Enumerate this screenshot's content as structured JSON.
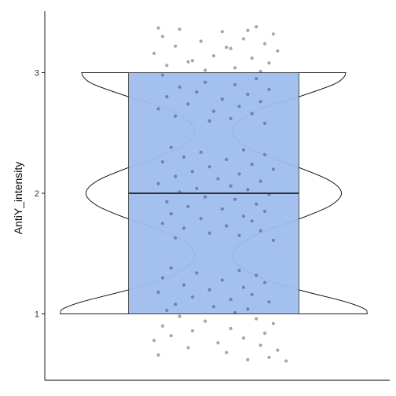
{
  "chart_data": {
    "type": "violin",
    "title": "",
    "xlabel": "",
    "ylabel": "AntiY_intensity",
    "ylim": [
      0.45,
      3.55
    ],
    "yticks": [
      1,
      2,
      3
    ],
    "ytick_labels": [
      "1",
      "2",
      "3"
    ],
    "grid": false,
    "legend": "none",
    "colors": {
      "box_fill": "#9fbdee",
      "box_stroke": "#2b2b2b",
      "violin_stroke": "#000000",
      "points": "#3a3a3a",
      "axis": "#000000"
    },
    "violin": {
      "y_range": [
        1,
        3
      ],
      "density_profile": [
        {
          "y": 1.0,
          "w": 0.36
        },
        {
          "y": 1.04,
          "w": 0.355
        },
        {
          "y": 1.1,
          "w": 0.31
        },
        {
          "y": 1.2,
          "w": 0.2
        },
        {
          "y": 1.3,
          "w": 0.11
        },
        {
          "y": 1.4,
          "w": 0.06
        },
        {
          "y": 1.5,
          "w": 0.045
        },
        {
          "y": 1.6,
          "w": 0.07
        },
        {
          "y": 1.7,
          "w": 0.13
        },
        {
          "y": 1.8,
          "w": 0.21
        },
        {
          "y": 1.9,
          "w": 0.275
        },
        {
          "y": 2.0,
          "w": 0.3
        },
        {
          "y": 2.1,
          "w": 0.275
        },
        {
          "y": 2.2,
          "w": 0.21
        },
        {
          "y": 2.3,
          "w": 0.13
        },
        {
          "y": 2.4,
          "w": 0.07
        },
        {
          "y": 2.5,
          "w": 0.045
        },
        {
          "y": 2.6,
          "w": 0.06
        },
        {
          "y": 2.7,
          "w": 0.11
        },
        {
          "y": 2.8,
          "w": 0.2
        },
        {
          "y": 2.9,
          "w": 0.28
        },
        {
          "y": 2.96,
          "w": 0.305
        },
        {
          "y": 3.0,
          "w": 0.31
        }
      ]
    },
    "box": {
      "lower": 1.0,
      "median": 2.0,
      "upper": 3.0,
      "half_width": 0.2
    },
    "points": [
      {
        "x": 0.1,
        "y": 3.38
      },
      {
        "x": -0.08,
        "y": 3.36
      },
      {
        "x": 0.02,
        "y": 3.34
      },
      {
        "x": 0.14,
        "y": 3.32
      },
      {
        "x": -0.12,
        "y": 3.3
      },
      {
        "x": 0.07,
        "y": 3.28
      },
      {
        "x": -0.03,
        "y": 3.26
      },
      {
        "x": 0.12,
        "y": 3.24
      },
      {
        "x": -0.09,
        "y": 3.22
      },
      {
        "x": 0.04,
        "y": 3.2
      },
      {
        "x": 0.15,
        "y": 3.18
      },
      {
        "x": -0.14,
        "y": 3.16
      },
      {
        "x": 0.0,
        "y": 3.14
      },
      {
        "x": 0.09,
        "y": 3.12
      },
      {
        "x": -0.05,
        "y": 3.1
      },
      {
        "x": 0.13,
        "y": 3.08
      },
      {
        "x": -0.11,
        "y": 3.06
      },
      {
        "x": 0.05,
        "y": 3.04
      },
      {
        "x": -0.02,
        "y": 3.02
      },
      {
        "x": 0.11,
        "y": 3.01
      },
      {
        "x": -0.06,
        "y": 3.09
      },
      {
        "x": 0.03,
        "y": 3.21
      },
      {
        "x": -0.13,
        "y": 3.37
      },
      {
        "x": 0.08,
        "y": 3.35
      },
      {
        "x": -0.12,
        "y": 2.98
      },
      {
        "x": 0.1,
        "y": 2.95
      },
      {
        "x": -0.02,
        "y": 2.92
      },
      {
        "x": 0.05,
        "y": 2.9
      },
      {
        "x": -0.08,
        "y": 2.88
      },
      {
        "x": 0.13,
        "y": 2.86
      },
      {
        "x": -0.04,
        "y": 2.84
      },
      {
        "x": 0.08,
        "y": 2.82
      },
      {
        "x": -0.11,
        "y": 2.8
      },
      {
        "x": 0.02,
        "y": 2.78
      },
      {
        "x": 0.11,
        "y": 2.76
      },
      {
        "x": -0.06,
        "y": 2.74
      },
      {
        "x": 0.06,
        "y": 2.72
      },
      {
        "x": -0.13,
        "y": 2.7
      },
      {
        "x": 0.0,
        "y": 2.68
      },
      {
        "x": 0.09,
        "y": 2.66
      },
      {
        "x": -0.09,
        "y": 2.64
      },
      {
        "x": 0.04,
        "y": 2.62
      },
      {
        "x": -0.01,
        "y": 2.6
      },
      {
        "x": 0.12,
        "y": 2.58
      },
      {
        "x": -0.1,
        "y": 2.38
      },
      {
        "x": 0.07,
        "y": 2.36
      },
      {
        "x": -0.03,
        "y": 2.34
      },
      {
        "x": 0.12,
        "y": 2.32
      },
      {
        "x": -0.07,
        "y": 2.3
      },
      {
        "x": 0.03,
        "y": 2.28
      },
      {
        "x": -0.12,
        "y": 2.26
      },
      {
        "x": 0.09,
        "y": 2.24
      },
      {
        "x": -0.01,
        "y": 2.22
      },
      {
        "x": 0.14,
        "y": 2.2
      },
      {
        "x": -0.05,
        "y": 2.18
      },
      {
        "x": 0.06,
        "y": 2.16
      },
      {
        "x": -0.09,
        "y": 2.14
      },
      {
        "x": 0.01,
        "y": 2.12
      },
      {
        "x": 0.11,
        "y": 2.1
      },
      {
        "x": -0.13,
        "y": 2.08
      },
      {
        "x": 0.04,
        "y": 2.06
      },
      {
        "x": -0.04,
        "y": 2.04
      },
      {
        "x": 0.08,
        "y": 2.03
      },
      {
        "x": -0.08,
        "y": 2.01
      },
      {
        "x": 0.13,
        "y": 1.99
      },
      {
        "x": -0.02,
        "y": 1.97
      },
      {
        "x": 0.05,
        "y": 1.95
      },
      {
        "x": -0.11,
        "y": 1.93
      },
      {
        "x": 0.1,
        "y": 1.91
      },
      {
        "x": -0.06,
        "y": 1.89
      },
      {
        "x": 0.02,
        "y": 1.87
      },
      {
        "x": 0.12,
        "y": 1.85
      },
      {
        "x": -0.1,
        "y": 1.83
      },
      {
        "x": 0.07,
        "y": 1.81
      },
      {
        "x": -0.03,
        "y": 1.79
      },
      {
        "x": 0.09,
        "y": 1.77
      },
      {
        "x": -0.12,
        "y": 1.75
      },
      {
        "x": 0.03,
        "y": 1.73
      },
      {
        "x": -0.07,
        "y": 1.71
      },
      {
        "x": 0.11,
        "y": 1.69
      },
      {
        "x": -0.01,
        "y": 1.67
      },
      {
        "x": 0.06,
        "y": 1.65
      },
      {
        "x": -0.09,
        "y": 1.63
      },
      {
        "x": 0.14,
        "y": 1.61
      },
      {
        "x": -0.1,
        "y": 1.38
      },
      {
        "x": 0.06,
        "y": 1.36
      },
      {
        "x": -0.04,
        "y": 1.34
      },
      {
        "x": 0.1,
        "y": 1.32
      },
      {
        "x": -0.12,
        "y": 1.3
      },
      {
        "x": 0.02,
        "y": 1.28
      },
      {
        "x": 0.12,
        "y": 1.26
      },
      {
        "x": -0.07,
        "y": 1.24
      },
      {
        "x": 0.07,
        "y": 1.22
      },
      {
        "x": -0.01,
        "y": 1.2
      },
      {
        "x": -0.13,
        "y": 1.18
      },
      {
        "x": 0.09,
        "y": 1.16
      },
      {
        "x": -0.05,
        "y": 1.14
      },
      {
        "x": 0.04,
        "y": 1.12
      },
      {
        "x": 0.13,
        "y": 1.1
      },
      {
        "x": -0.09,
        "y": 1.08
      },
      {
        "x": 0.0,
        "y": 1.06
      },
      {
        "x": 0.08,
        "y": 1.04
      },
      {
        "x": -0.11,
        "y": 1.03
      },
      {
        "x": 0.05,
        "y": 1.01
      },
      {
        "x": -0.08,
        "y": 0.98
      },
      {
        "x": 0.1,
        "y": 0.96
      },
      {
        "x": -0.02,
        "y": 0.94
      },
      {
        "x": 0.14,
        "y": 0.92
      },
      {
        "x": -0.12,
        "y": 0.9
      },
      {
        "x": 0.04,
        "y": 0.88
      },
      {
        "x": -0.05,
        "y": 0.86
      },
      {
        "x": 0.12,
        "y": 0.84
      },
      {
        "x": -0.1,
        "y": 0.82
      },
      {
        "x": 0.07,
        "y": 0.8
      },
      {
        "x": -0.14,
        "y": 0.78
      },
      {
        "x": 0.01,
        "y": 0.76
      },
      {
        "x": 0.11,
        "y": 0.74
      },
      {
        "x": -0.06,
        "y": 0.72
      },
      {
        "x": 0.15,
        "y": 0.7
      },
      {
        "x": 0.03,
        "y": 0.68
      },
      {
        "x": -0.13,
        "y": 0.66
      },
      {
        "x": 0.13,
        "y": 0.64
      },
      {
        "x": 0.08,
        "y": 0.62
      },
      {
        "x": 0.17,
        "y": 0.61
      }
    ]
  }
}
